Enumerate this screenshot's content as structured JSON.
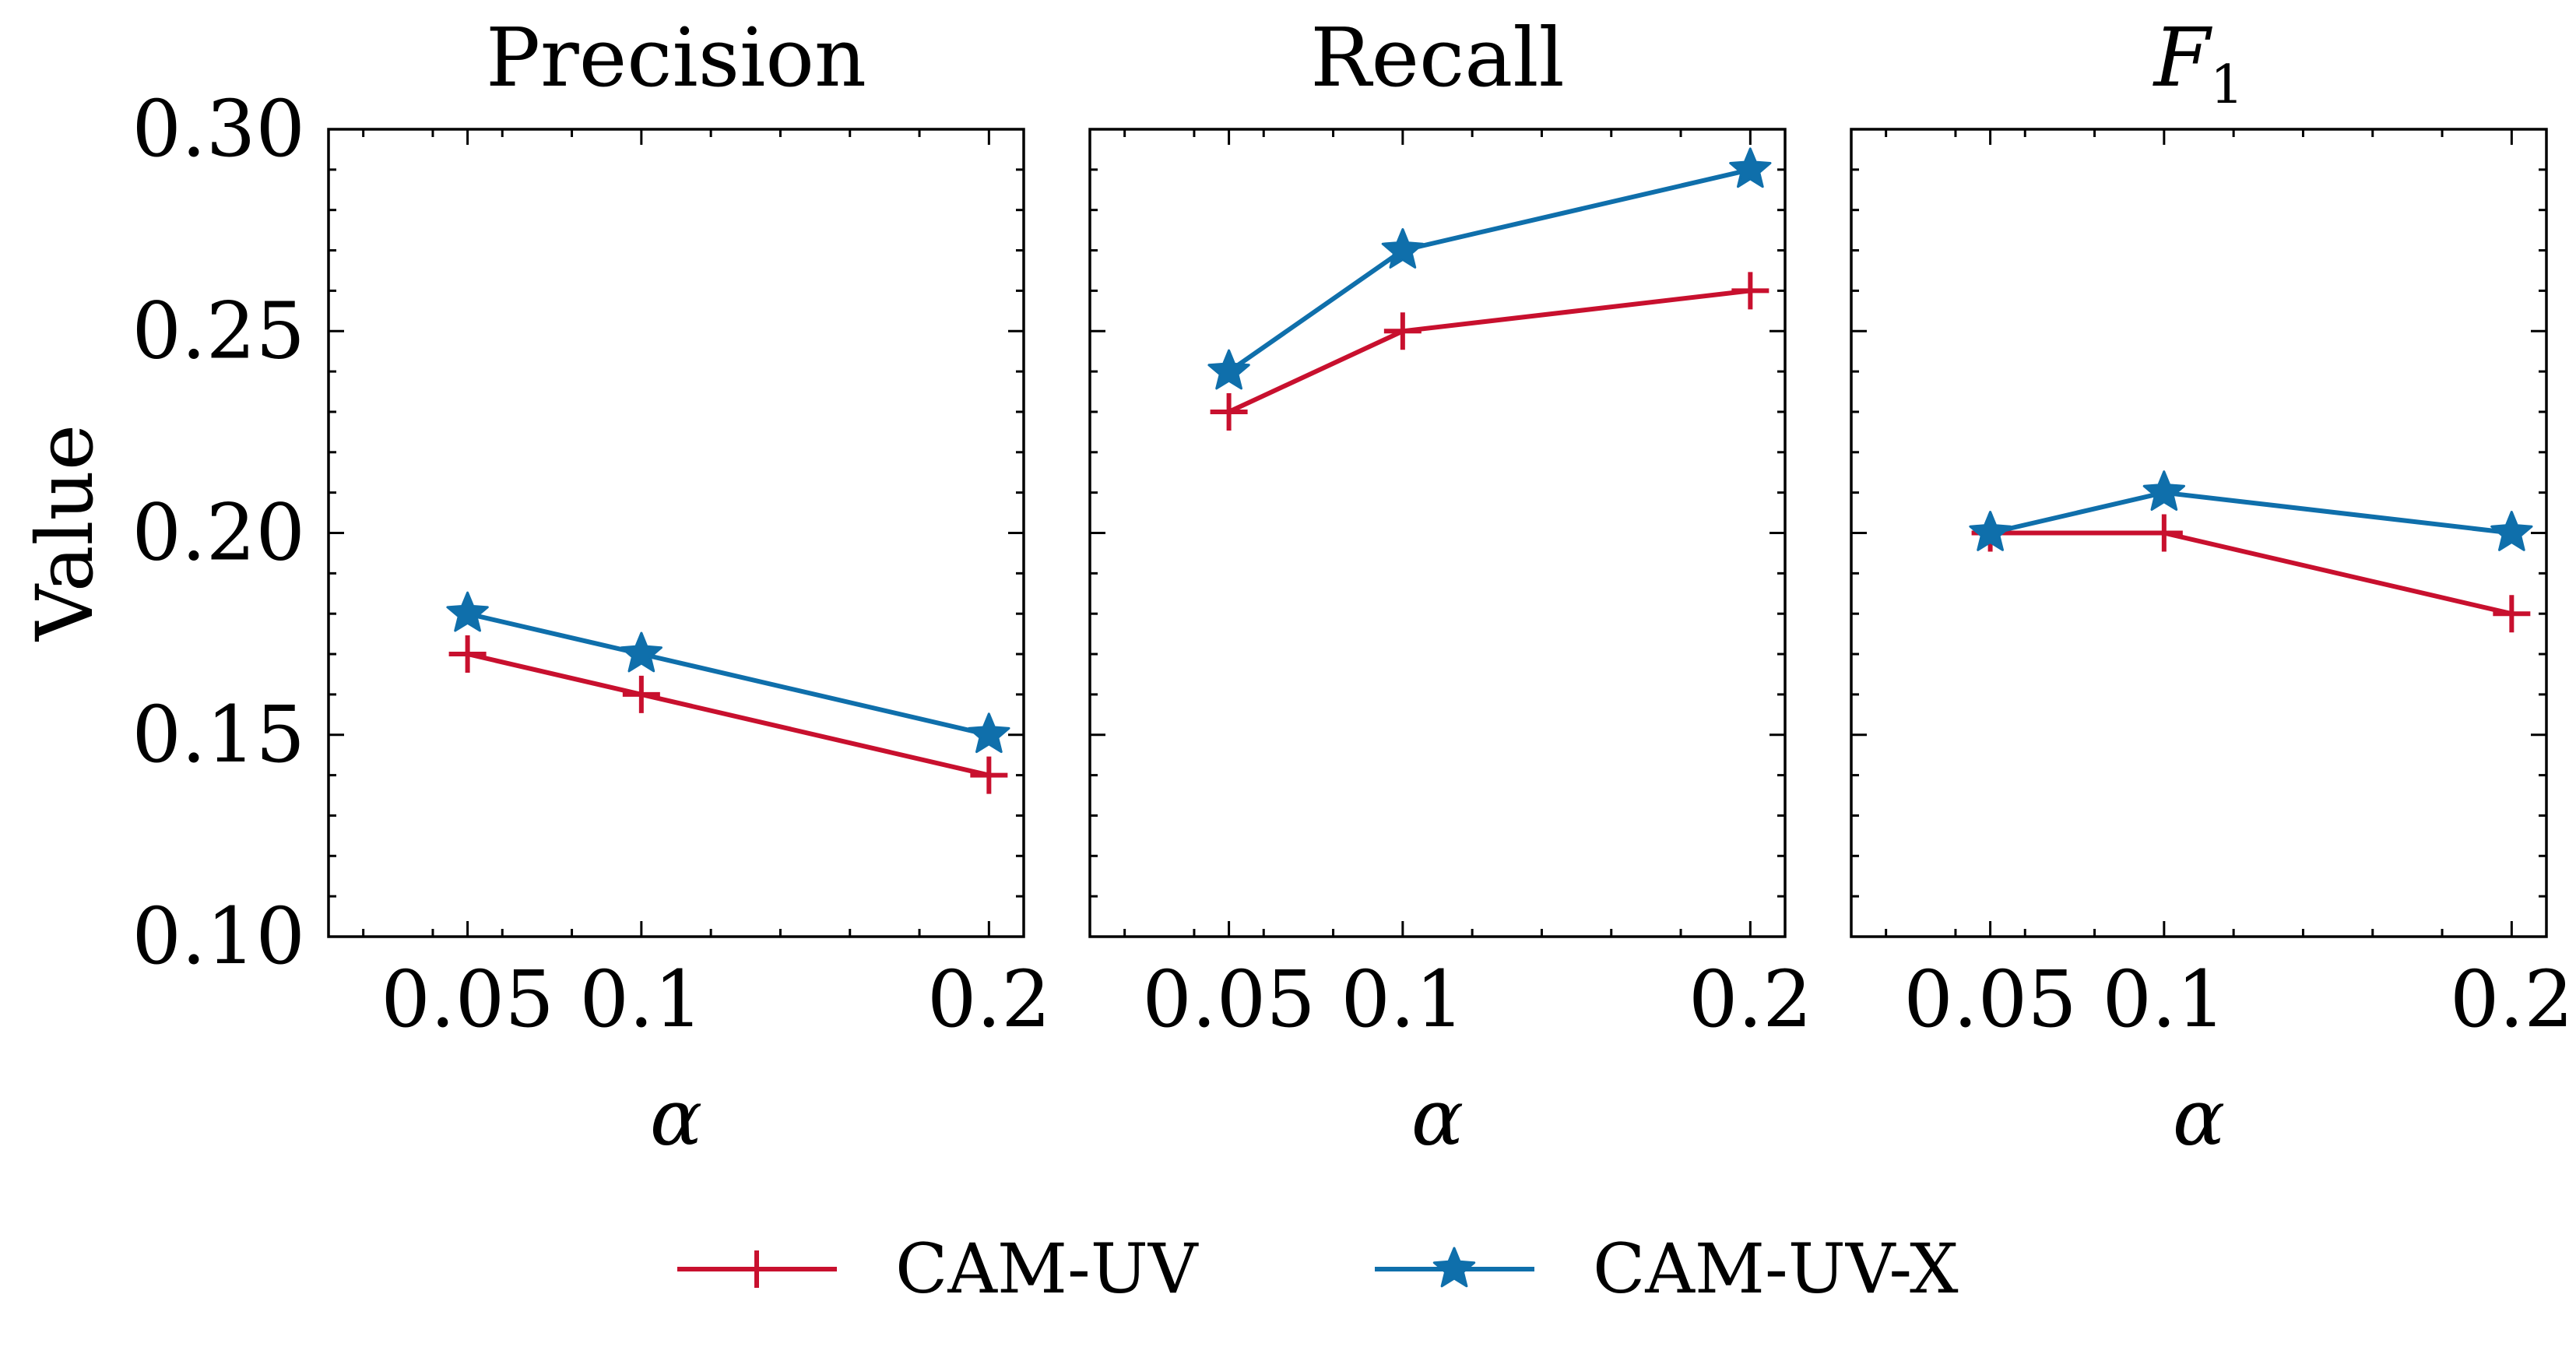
{
  "chart_data": {
    "type": "line",
    "ylabel": "Value",
    "xlabel": "α",
    "x": [
      0.05,
      0.1,
      0.2
    ],
    "x_tick_labels": [
      "0.05",
      "0.1",
      "0.2"
    ],
    "xlim": [
      0.01,
      0.21
    ],
    "ylim": [
      0.1,
      0.3
    ],
    "y_ticks": [
      0.1,
      0.15,
      0.2,
      0.25,
      0.3
    ],
    "y_tick_labels": [
      "0.10",
      "0.15",
      "0.20",
      "0.25",
      "0.30"
    ],
    "legend_position": "bottom-center",
    "series_styles": [
      {
        "name": "CAM-UV",
        "color": "#c8102e",
        "marker": "plus"
      },
      {
        "name": "CAM-UV-X",
        "color": "#0f6fab",
        "marker": "star"
      }
    ],
    "panels": [
      {
        "title": "Precision",
        "series": [
          {
            "name": "CAM-UV",
            "values": [
              0.17,
              0.16,
              0.14
            ]
          },
          {
            "name": "CAM-UV-X",
            "values": [
              0.18,
              0.17,
              0.15
            ]
          }
        ]
      },
      {
        "title": "Recall",
        "series": [
          {
            "name": "CAM-UV",
            "values": [
              0.23,
              0.25,
              0.26
            ]
          },
          {
            "name": "CAM-UV-X",
            "values": [
              0.24,
              0.27,
              0.29
            ]
          }
        ]
      },
      {
        "title": "F",
        "title_subscript": "1",
        "series": [
          {
            "name": "CAM-UV",
            "values": [
              0.2,
              0.2,
              0.18
            ]
          },
          {
            "name": "CAM-UV-X",
            "values": [
              0.2,
              0.21,
              0.2
            ]
          }
        ]
      }
    ]
  }
}
